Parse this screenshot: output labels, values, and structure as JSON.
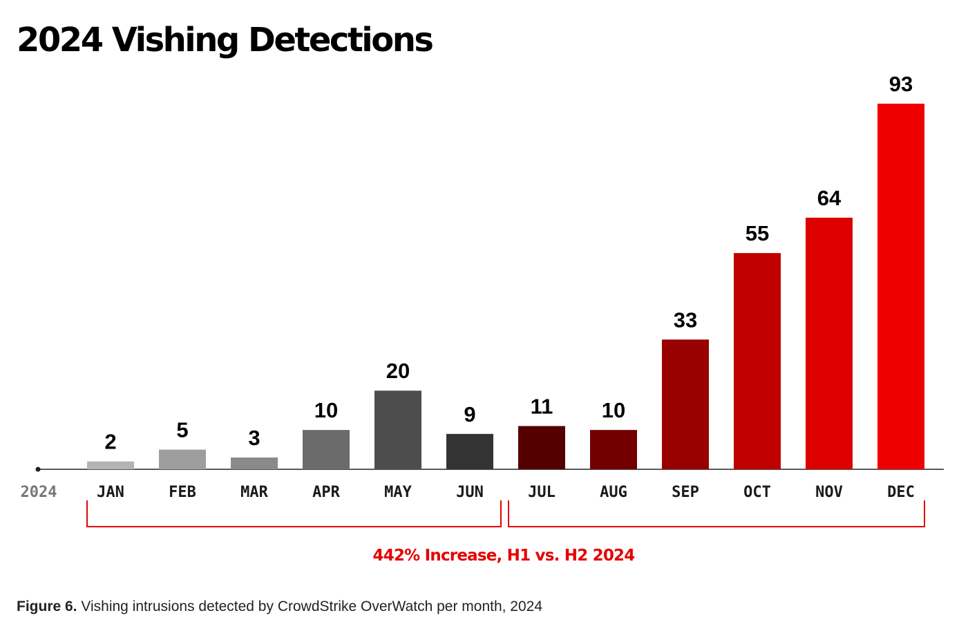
{
  "chart_data": {
    "type": "bar",
    "title": "2024 Vishing Detections",
    "year_label": "2024",
    "categories": [
      "JAN",
      "FEB",
      "MAR",
      "APR",
      "MAY",
      "JUN",
      "JUL",
      "AUG",
      "SEP",
      "OCT",
      "NOV",
      "DEC"
    ],
    "values": [
      2,
      5,
      3,
      10,
      20,
      9,
      11,
      10,
      33,
      55,
      64,
      93
    ],
    "colors": [
      "#b3b3b3",
      "#9e9e9e",
      "#8a8a8a",
      "#6b6b6b",
      "#4d4d4d",
      "#333333",
      "#550000",
      "#720000",
      "#990000",
      "#c00000",
      "#dc0000",
      "#ee0000"
    ],
    "ylim": [
      0,
      93
    ],
    "xlabel": "",
    "ylabel": "",
    "annotation": "442% Increase, H1 vs. H2 2024",
    "accent_color": "#e60000",
    "axis_color": "#222222"
  },
  "caption": {
    "label": "Figure 6.",
    "text": " Vishing intrusions detected by CrowdStrike OverWatch per month, 2024"
  }
}
